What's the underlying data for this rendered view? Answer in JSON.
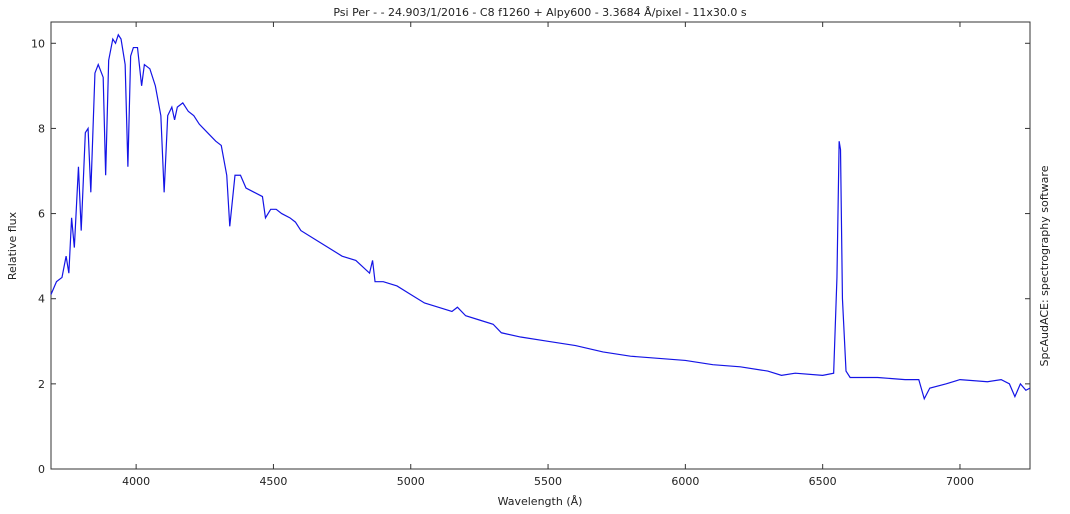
{
  "chart_data": {
    "type": "line",
    "title": "Psi Per -  - 24.903/1/2016 - C8  f1260 + Alpy600 - 3.3684 Å/pixel - 11x30.0 s",
    "x_label": "Wavelength (Å)",
    "y_label": "Relative flux",
    "side_note": "SpcAudACE: spectrography software",
    "xlim": [
      3690,
      7255
    ],
    "ylim": [
      0,
      10.5
    ],
    "xticks": [
      4000,
      4500,
      5000,
      5500,
      6000,
      6500,
      7000
    ],
    "yticks": [
      0,
      2,
      4,
      6,
      8,
      10
    ],
    "x": [
      3690,
      3710,
      3730,
      3745,
      3755,
      3765,
      3775,
      3790,
      3800,
      3815,
      3825,
      3835,
      3850,
      3862,
      3880,
      3889,
      3900,
      3915,
      3925,
      3935,
      3945,
      3960,
      3970,
      3980,
      3990,
      4005,
      4020,
      4030,
      4050,
      4070,
      4090,
      4102,
      4115,
      4130,
      4140,
      4150,
      4170,
      4190,
      4210,
      4230,
      4260,
      4290,
      4310,
      4330,
      4341,
      4360,
      4380,
      4400,
      4430,
      4460,
      4471,
      4490,
      4510,
      4530,
      4560,
      4580,
      4600,
      4650,
      4700,
      4750,
      4800,
      4850,
      4861,
      4870,
      4900,
      4950,
      5000,
      5050,
      5100,
      5150,
      5170,
      5200,
      5250,
      5300,
      5330,
      5400,
      5500,
      5600,
      5700,
      5800,
      5900,
      6000,
      6100,
      6200,
      6300,
      6350,
      6400,
      6500,
      6540,
      6552,
      6560,
      6565,
      6572,
      6585,
      6600,
      6700,
      6800,
      6850,
      6870,
      6890,
      6950,
      7000,
      7100,
      7150,
      7180,
      7200,
      7220,
      7240,
      7255
    ],
    "series": [
      {
        "name": "Psi Per",
        "color": "#1414e6",
        "values": [
          4.1,
          4.4,
          4.5,
          5.0,
          4.6,
          5.9,
          5.2,
          7.1,
          5.6,
          7.9,
          8.0,
          6.5,
          9.3,
          9.5,
          9.2,
          6.9,
          9.6,
          10.1,
          10.0,
          10.2,
          10.1,
          9.5,
          7.1,
          9.7,
          9.9,
          9.9,
          9.0,
          9.5,
          9.4,
          9.0,
          8.3,
          6.5,
          8.3,
          8.5,
          8.2,
          8.5,
          8.6,
          8.4,
          8.3,
          8.1,
          7.9,
          7.7,
          7.6,
          6.9,
          5.7,
          6.9,
          6.9,
          6.6,
          6.5,
          6.4,
          5.9,
          6.1,
          6.1,
          6.0,
          5.9,
          5.8,
          5.6,
          5.4,
          5.2,
          5.0,
          4.9,
          4.6,
          4.9,
          4.4,
          4.4,
          4.3,
          4.1,
          3.9,
          3.8,
          3.7,
          3.8,
          3.6,
          3.5,
          3.4,
          3.2,
          3.1,
          3.0,
          2.9,
          2.75,
          2.65,
          2.6,
          2.55,
          2.45,
          2.4,
          2.3,
          2.2,
          2.25,
          2.2,
          2.25,
          4.5,
          7.7,
          7.5,
          4.0,
          2.3,
          2.15,
          2.15,
          2.1,
          2.1,
          1.65,
          1.9,
          2.0,
          2.1,
          2.05,
          2.1,
          2.0,
          1.7,
          2.0,
          1.85,
          1.9
        ]
      }
    ]
  }
}
